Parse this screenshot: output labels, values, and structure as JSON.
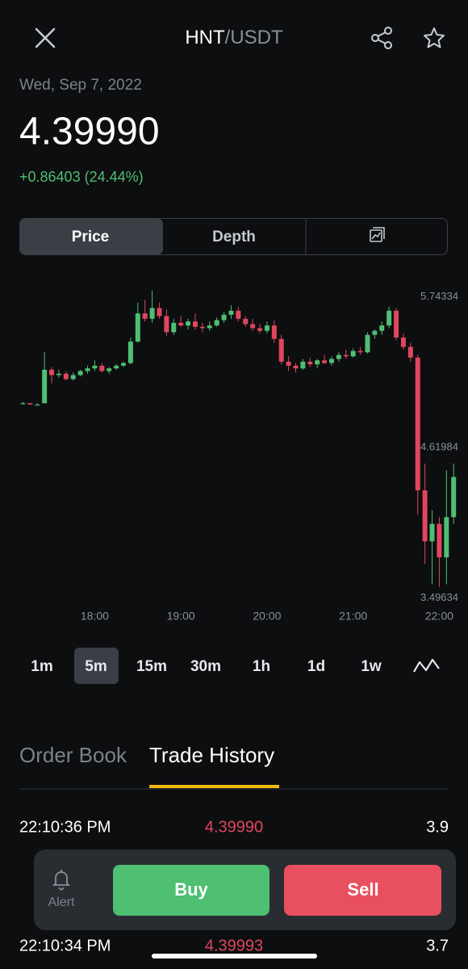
{
  "header": {
    "base": "HNT",
    "quote": "/USDT"
  },
  "quote": {
    "date": "Wed, Sep 7, 2022",
    "price": "4.39990",
    "change": "+0.86403 (24.44%)"
  },
  "chart_tabs": [
    "Price",
    "Depth"
  ],
  "chart": {
    "type": "candlestick",
    "up_color": "#4fbf72",
    "down_color": "#e0465e",
    "x": [
      1030,
      1035,
      1040,
      1045,
      1050,
      1055,
      1060,
      1065,
      1070,
      1075,
      1080,
      1085,
      1090,
      1095,
      1100,
      1105,
      1110,
      1115,
      1120,
      1125,
      1130,
      1135,
      1140,
      1145,
      1150,
      1155,
      1160,
      1165,
      1170,
      1175,
      1180,
      1185,
      1190,
      1195,
      1200,
      1205,
      1210,
      1215,
      1220,
      1225,
      1230,
      1235,
      1240,
      1245,
      1250,
      1255,
      1260,
      1265,
      1270,
      1275,
      1280,
      1285,
      1290,
      1295,
      1300,
      1305,
      1310,
      1315,
      1320,
      1325,
      1330
    ],
    "open": [
      4.95,
      4.95,
      4.94,
      4.95,
      5.2,
      5.16,
      5.17,
      5.13,
      5.16,
      5.19,
      5.21,
      5.23,
      5.19,
      5.21,
      5.23,
      5.25,
      5.41,
      5.62,
      5.58,
      5.66,
      5.6,
      5.48,
      5.55,
      5.53,
      5.56,
      5.52,
      5.51,
      5.53,
      5.57,
      5.61,
      5.64,
      5.58,
      5.54,
      5.51,
      5.49,
      5.53,
      5.43,
      5.26,
      5.23,
      5.21,
      5.26,
      5.24,
      5.27,
      5.25,
      5.28,
      5.31,
      5.3,
      5.34,
      5.33,
      5.46,
      5.49,
      5.53,
      5.64,
      5.44,
      5.37,
      5.29,
      4.3,
      3.92,
      4.05,
      3.8,
      4.1
    ],
    "high": [
      4.96,
      4.95,
      4.95,
      5.33,
      5.22,
      5.2,
      5.19,
      5.18,
      5.2,
      5.23,
      5.27,
      5.25,
      5.22,
      5.24,
      5.26,
      5.44,
      5.7,
      5.72,
      5.79,
      5.7,
      5.65,
      5.58,
      5.6,
      5.58,
      5.62,
      5.55,
      5.56,
      5.59,
      5.63,
      5.68,
      5.67,
      5.6,
      5.58,
      5.54,
      5.56,
      5.57,
      5.46,
      5.3,
      5.25,
      5.28,
      5.29,
      5.28,
      5.31,
      5.3,
      5.33,
      5.35,
      5.36,
      5.37,
      5.48,
      5.5,
      5.56,
      5.67,
      5.66,
      5.47,
      5.4,
      5.31,
      4.5,
      4.15,
      4.1,
      4.45,
      4.5
    ],
    "low": [
      4.94,
      4.94,
      4.94,
      4.95,
      5.1,
      5.14,
      5.12,
      5.12,
      5.15,
      5.17,
      5.19,
      5.18,
      5.17,
      5.2,
      5.22,
      5.24,
      5.4,
      5.56,
      5.55,
      5.58,
      5.45,
      5.46,
      5.52,
      5.5,
      5.5,
      5.48,
      5.49,
      5.52,
      5.55,
      5.58,
      5.56,
      5.52,
      5.49,
      5.47,
      5.47,
      5.4,
      5.24,
      5.19,
      5.18,
      5.2,
      5.22,
      5.21,
      5.24,
      5.23,
      5.26,
      5.28,
      5.29,
      5.31,
      5.32,
      5.43,
      5.46,
      5.51,
      5.42,
      5.35,
      5.26,
      4.12,
      3.75,
      3.6,
      3.58,
      3.6,
      4.05
    ],
    "close": [
      4.95,
      4.94,
      4.94,
      5.2,
      5.16,
      5.17,
      5.13,
      5.16,
      5.19,
      5.21,
      5.23,
      5.19,
      5.21,
      5.23,
      5.25,
      5.41,
      5.62,
      5.58,
      5.66,
      5.6,
      5.48,
      5.55,
      5.53,
      5.56,
      5.52,
      5.51,
      5.53,
      5.57,
      5.61,
      5.64,
      5.58,
      5.54,
      5.51,
      5.49,
      5.53,
      5.43,
      5.26,
      5.23,
      5.21,
      5.26,
      5.24,
      5.27,
      5.25,
      5.28,
      5.31,
      5.3,
      5.34,
      5.33,
      5.46,
      5.49,
      5.53,
      5.64,
      5.44,
      5.37,
      5.29,
      4.3,
      3.92,
      4.05,
      3.8,
      4.1,
      4.3999
    ],
    "xlim": [
      1014,
      1340
    ],
    "ylim": [
      3.44,
      5.91
    ],
    "xticks": [
      {
        "value": 1080,
        "label": "18:00"
      },
      {
        "value": 1140,
        "label": "19:00"
      },
      {
        "value": 1200,
        "label": "20:00"
      },
      {
        "value": 1260,
        "label": "21:00"
      },
      {
        "value": 1320,
        "label": "22:00"
      }
    ],
    "yticks": [
      3.49634,
      4.61984,
      5.74334
    ]
  },
  "intervals": [
    "1m",
    "5m",
    "15m",
    "30m",
    "1h",
    "1d",
    "1w"
  ],
  "trade_tabs": [
    "Order Book",
    "Trade History"
  ],
  "trades": [
    [
      "22:10:36 PM",
      "4.39990",
      "3.9"
    ],
    [
      "22:10:34 PM",
      "4.39993",
      "3.7"
    ]
  ],
  "actions": {
    "alert": "Alert",
    "buy": "Buy",
    "sell": "Sell"
  }
}
